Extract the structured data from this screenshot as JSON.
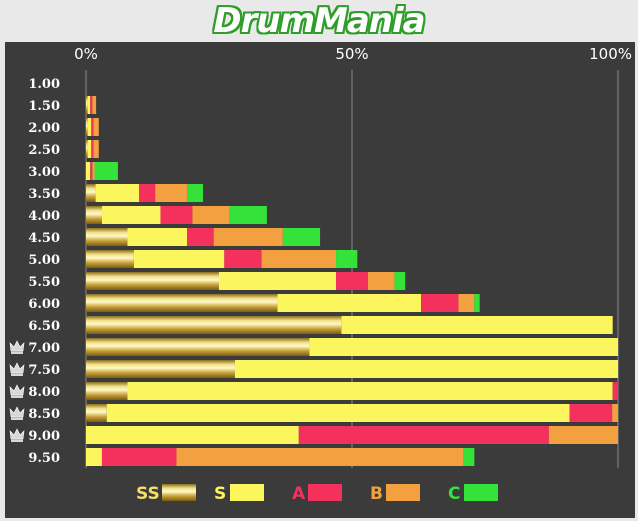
{
  "logo": {
    "text": "DrumMania"
  },
  "colors": {
    "panel_bg": "#3b3b3b",
    "ss": "#c9a53a",
    "s": "#fbf55e",
    "a": "#f4305d",
    "b": "#f3a040",
    "c": "#34e23a",
    "gridline": "#8a8a8a",
    "crown": "#d8d8d8"
  },
  "chart_data": {
    "type": "bar",
    "orientation": "horizontal",
    "stacked": true,
    "value_unit": "%",
    "xlim": [
      0,
      100
    ],
    "x_ticks": [
      "0%",
      "50%",
      "100%"
    ],
    "x_tick_values": [
      0,
      50,
      100
    ],
    "categories": [
      "1.00",
      "1.50",
      "2.00",
      "2.50",
      "3.00",
      "3.50",
      "4.00",
      "4.50",
      "5.00",
      "5.50",
      "6.00",
      "6.50",
      "7.00",
      "7.50",
      "8.00",
      "8.50",
      "9.00",
      "9.50"
    ],
    "crowned": [
      false,
      false,
      false,
      false,
      false,
      false,
      false,
      false,
      false,
      false,
      false,
      false,
      true,
      true,
      true,
      true,
      true,
      false
    ],
    "series": [
      {
        "name": "SS",
        "color_key": "ss",
        "values": [
          0,
          0.3,
          0.3,
          0.3,
          0,
          1.8,
          3,
          7.8,
          9,
          25,
          36,
          48,
          42,
          28,
          7.8,
          3.9,
          0,
          0
        ]
      },
      {
        "name": "S",
        "color_key": "s",
        "values": [
          0,
          0.5,
          0.7,
          0.7,
          0.8,
          8.2,
          11,
          11.2,
          17,
          22,
          27,
          51,
          58,
          72,
          91.2,
          87,
          40,
          3
        ]
      },
      {
        "name": "A",
        "color_key": "a",
        "values": [
          0,
          0.4,
          0.4,
          0.4,
          0.4,
          3,
          6,
          5,
          7,
          6,
          7,
          0,
          0,
          0,
          1,
          8,
          47,
          14
        ]
      },
      {
        "name": "B",
        "color_key": "b",
        "values": [
          0,
          0.7,
          1,
          1,
          0.4,
          6,
          7,
          13,
          14,
          5,
          3,
          0,
          0,
          0,
          0,
          1.1,
          13,
          54
        ]
      },
      {
        "name": "C",
        "color_key": "c",
        "values": [
          0,
          0,
          0,
          0,
          4.4,
          3,
          7,
          7,
          4,
          2,
          1,
          0,
          0,
          0,
          0,
          0,
          0,
          2
        ]
      }
    ],
    "legend": {
      "placement": "bottom",
      "entries": [
        {
          "label": "SS",
          "color_key": "ss"
        },
        {
          "label": "S",
          "color_key": "s"
        },
        {
          "label": "A",
          "color_key": "a"
        },
        {
          "label": "B",
          "color_key": "b"
        },
        {
          "label": "C",
          "color_key": "c"
        }
      ]
    }
  }
}
